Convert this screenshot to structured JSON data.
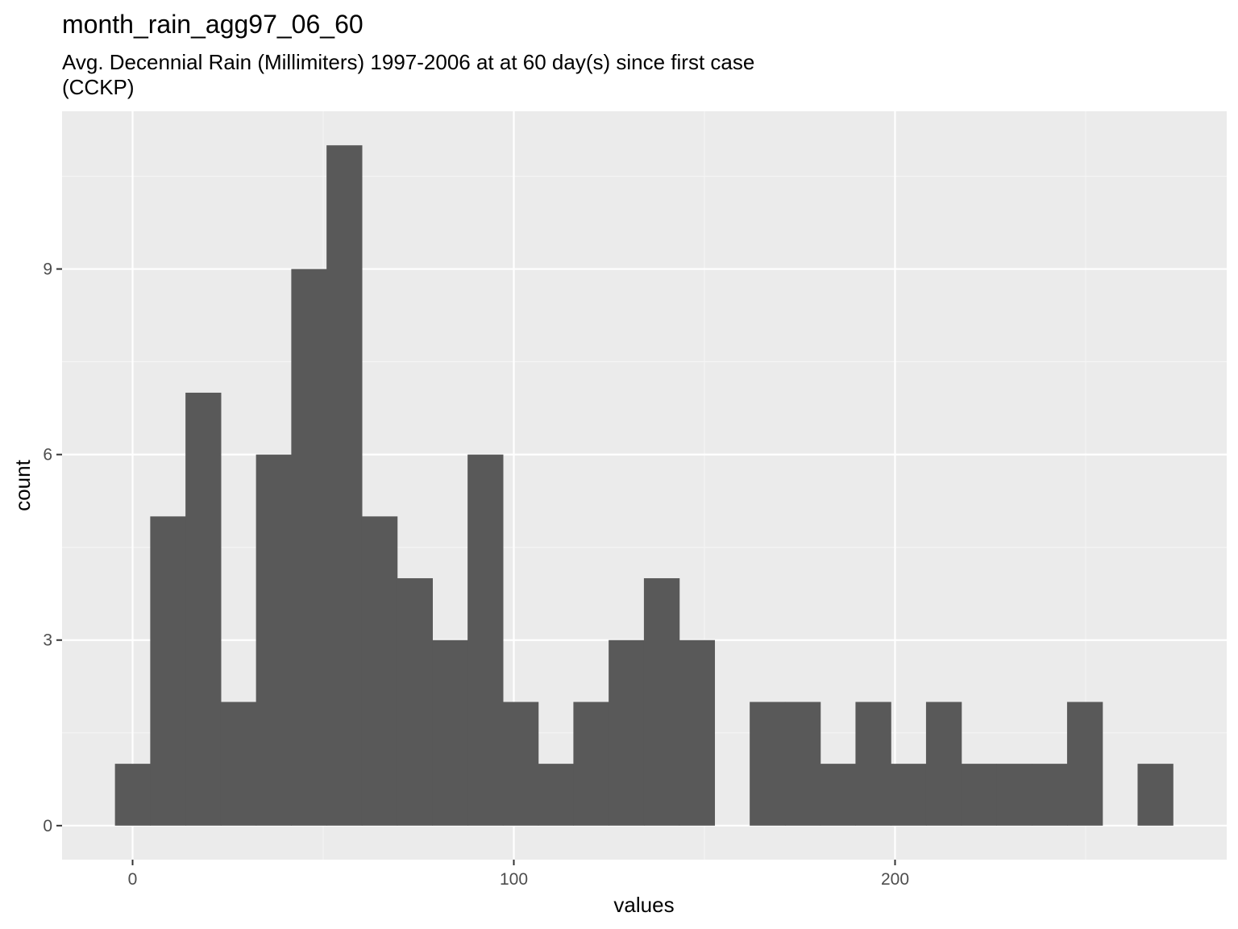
{
  "chart_data": {
    "type": "bar",
    "title": "month_rain_agg97_06_60",
    "subtitle_lines": [
      "Avg. Decennial Rain (Millimiters) 1997-2006 at at 60 day(s) since first case",
      "(CCKP)"
    ],
    "xlabel": "values",
    "ylabel": "count",
    "xlim": [
      -18.5,
      287
    ],
    "ylim": [
      -0.55,
      11.55
    ],
    "x_ticks": [
      0,
      100,
      200
    ],
    "x_tick_labels": [
      "0",
      "100",
      "200"
    ],
    "y_ticks": [
      0,
      3,
      6,
      9
    ],
    "y_tick_labels": [
      "0",
      "3",
      "6",
      "9"
    ],
    "x_minor_gridlines": [
      50,
      150,
      250
    ],
    "y_minor_gridlines": [
      1.5,
      4.5,
      7.5,
      10.5
    ],
    "bin_width": 9.25,
    "bin_start": -4.625,
    "values": [
      1,
      5,
      7,
      2,
      6,
      9,
      11,
      5,
      4,
      3,
      6,
      2,
      1,
      2,
      3,
      4,
      3,
      0,
      2,
      2,
      1,
      2,
      1,
      2,
      1,
      1,
      1,
      2,
      0,
      1
    ],
    "grid": true,
    "legend": "none",
    "colors": {
      "bar": "#595959",
      "panel": "#ebebeb",
      "grid_major": "#ffffff",
      "grid_minor": "#f5f5f5",
      "tick_text": "#4d4d4d",
      "tick_mark": "#333333"
    }
  }
}
